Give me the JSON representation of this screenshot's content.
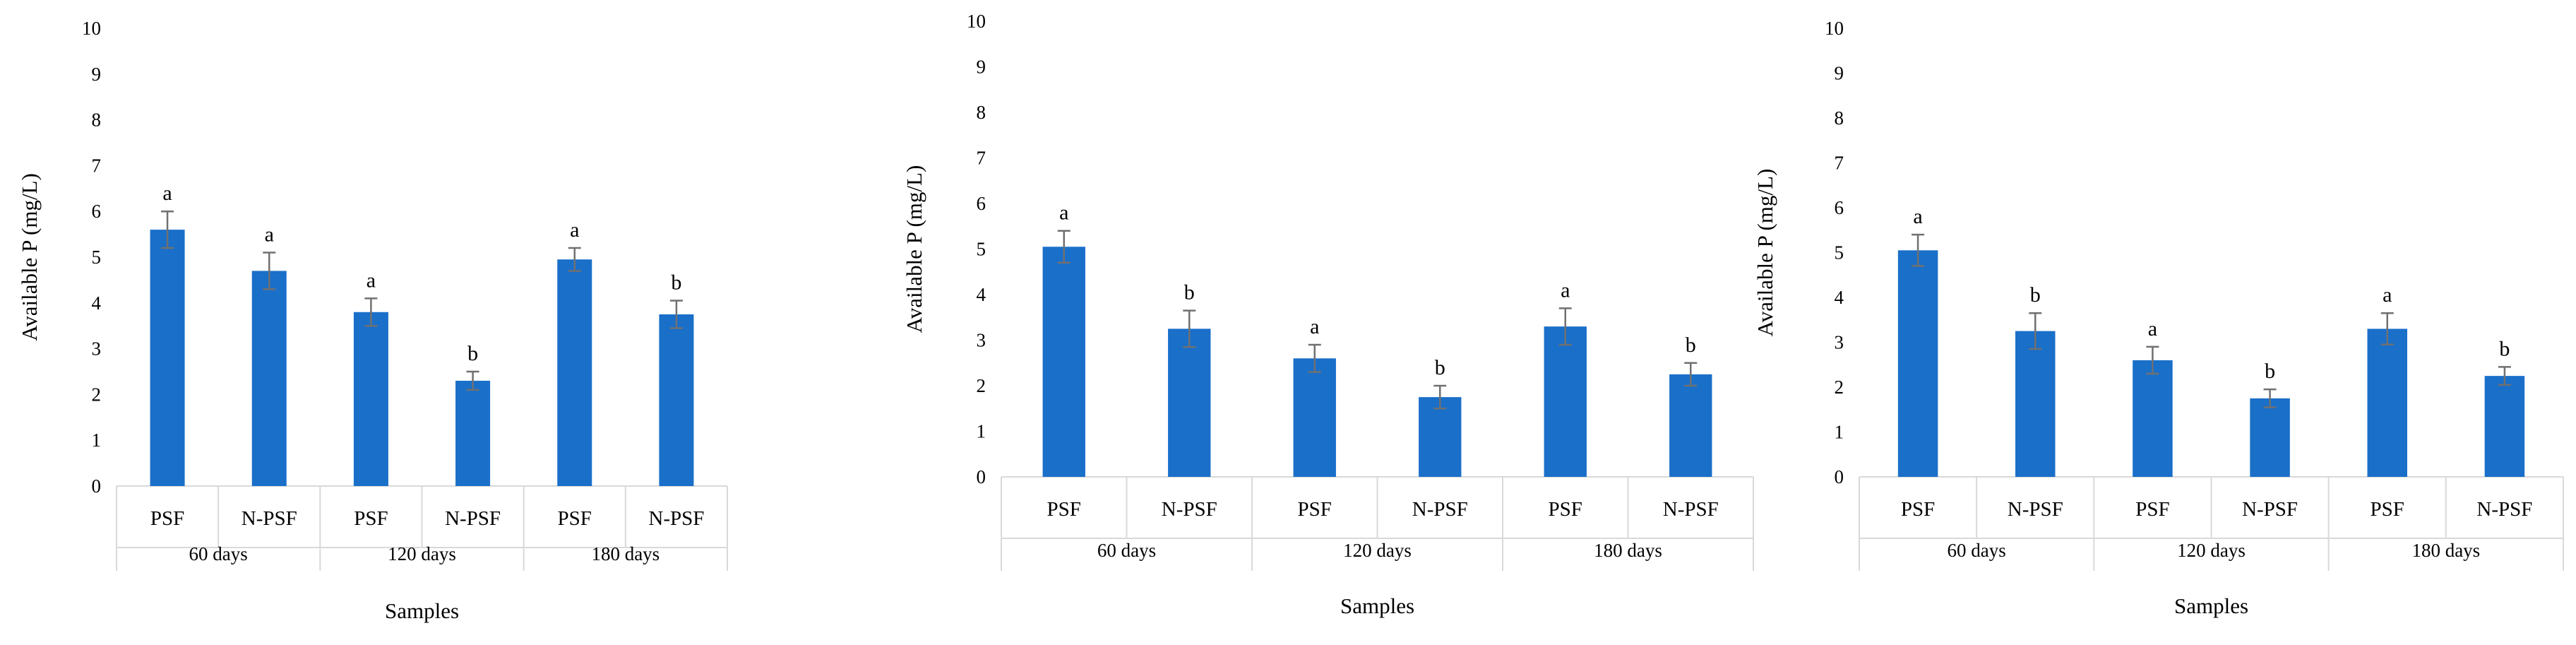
{
  "chart_data": [
    {
      "type": "bar",
      "ylabel": "Available P  (mg/L)",
      "xlabel": "Samples",
      "ylim": [
        0,
        10
      ],
      "yticks": [
        "0",
        "1",
        "2",
        "3",
        "4",
        "5",
        "6",
        "7",
        "8",
        "9",
        "10"
      ],
      "grid": false,
      "bar_color": "#1a6fc9",
      "groups": [
        "60 days",
        "120 days",
        "180 days"
      ],
      "categories": [
        "PSF",
        "N-PSF",
        "PSF",
        "N-PSF",
        "PSF",
        "N-PSF"
      ],
      "values": [
        5.6,
        4.7,
        3.8,
        2.3,
        4.95,
        3.75
      ],
      "errors": [
        0.4,
        0.4,
        0.3,
        0.2,
        0.25,
        0.3
      ],
      "letters": [
        "a",
        "a",
        "a",
        "b",
        "a",
        "b"
      ]
    },
    {
      "type": "bar",
      "ylabel": "Available P  (mg/L)",
      "xlabel": "Samples",
      "ylim": [
        0,
        10
      ],
      "yticks": [
        "0",
        "1",
        "2",
        "3",
        "4",
        "5",
        "6",
        "7",
        "8",
        "9",
        "10"
      ],
      "grid": false,
      "bar_color": "#1a6fc9",
      "groups": [
        "60 days",
        "120 days",
        "180 days"
      ],
      "categories": [
        "PSF",
        "N-PSF",
        "PSF",
        "N-PSF",
        "PSF",
        "N-PSF"
      ],
      "values": [
        5.05,
        3.25,
        2.6,
        1.75,
        3.3,
        2.25
      ],
      "errors": [
        0.35,
        0.4,
        0.3,
        0.25,
        0.4,
        0.25
      ],
      "letters": [
        "a",
        "b",
        "a",
        "b",
        "a",
        "b"
      ]
    },
    {
      "type": "bar",
      "ylabel": "Available P  (mg/L)",
      "xlabel": "Samples",
      "ylim": [
        0,
        10
      ],
      "yticks": [
        "0",
        "1",
        "2",
        "3",
        "4",
        "5",
        "6",
        "7",
        "8",
        "9",
        "10"
      ],
      "grid": false,
      "bar_color": "#1a6fc9",
      "groups": [
        "60 days",
        "120 days",
        "180 days"
      ],
      "categories": [
        "PSF",
        "N-PSF",
        "PSF",
        "N-PSF",
        "PSF",
        "N-PSF"
      ],
      "values": [
        5.05,
        3.25,
        2.6,
        1.75,
        3.3,
        2.25
      ],
      "errors": [
        0.35,
        0.4,
        0.3,
        0.2,
        0.35,
        0.2
      ],
      "letters": [
        "a",
        "b",
        "a",
        "b",
        "a",
        "b"
      ]
    }
  ]
}
